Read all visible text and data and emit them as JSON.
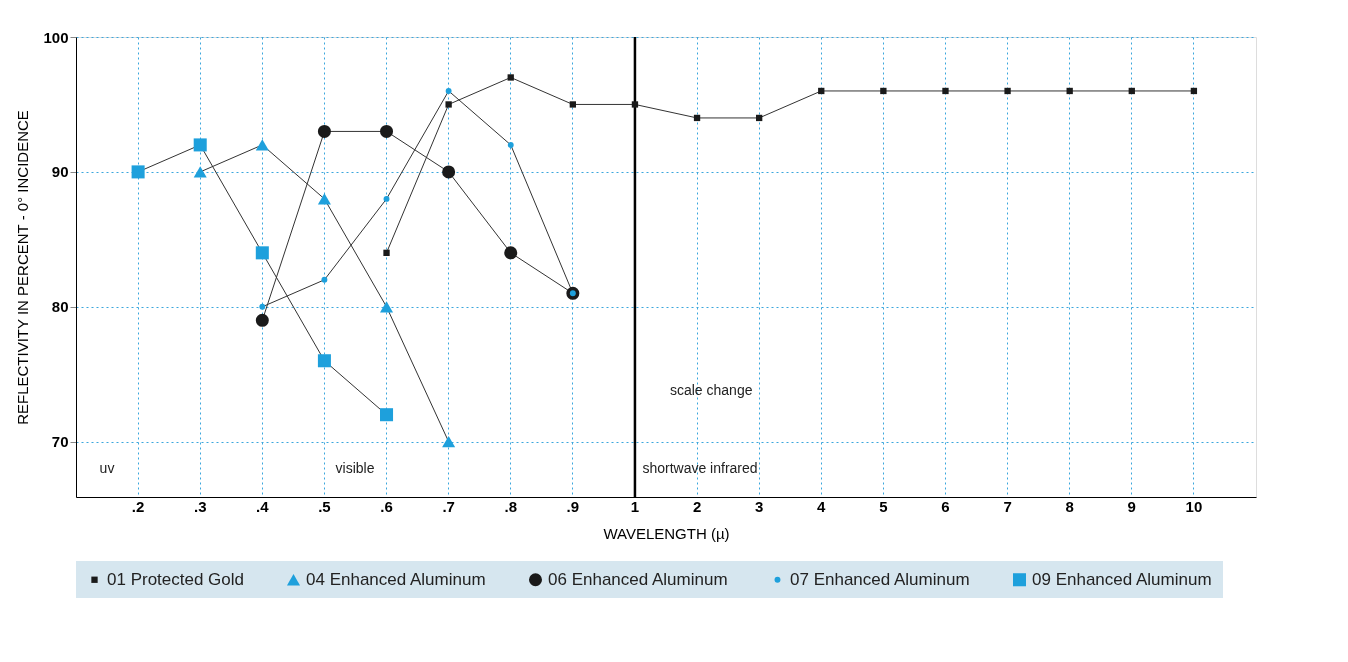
{
  "chart_data": {
    "type": "line",
    "xlabel": "WAVELENGTH (µ)",
    "ylabel": "REFLECTIVITY IN PERCENT - 0° INCIDENCE",
    "categories": [
      ".2",
      ".3",
      ".4",
      ".5",
      ".6",
      ".7",
      ".8",
      ".9",
      "1",
      "2",
      "3",
      "4",
      "5",
      "6",
      "7",
      "8",
      "9",
      "10"
    ],
    "series": [
      {
        "name": "01 Protected Gold",
        "color": "#1a1a1a",
        "marker": "square",
        "line_style": "solid",
        "values": [
          null,
          null,
          null,
          null,
          84,
          95,
          97,
          95,
          95,
          94,
          94,
          96,
          96,
          96,
          96,
          96,
          96,
          96
        ]
      },
      {
        "name": "04 Enhanced Aluminum",
        "color": "#1ea0dc",
        "marker": "triangle",
        "line_style": "solid",
        "values": [
          null,
          90,
          92,
          88,
          80,
          70,
          null,
          null,
          null,
          null,
          null,
          null,
          null,
          null,
          null,
          null,
          null,
          null
        ]
      },
      {
        "name": "06 Enhanced Aluminum",
        "color": "#1a1a1a",
        "marker": "circle",
        "line_style": "solid",
        "values": [
          null,
          null,
          79,
          93,
          93,
          90,
          84,
          81,
          null,
          null,
          null,
          null,
          null,
          null,
          null,
          null,
          null,
          null
        ]
      },
      {
        "name": "07 Enhanced Aluminum",
        "color": "#1ea0dc",
        "marker": "circle",
        "line_style": "solid",
        "values": [
          null,
          null,
          80,
          82,
          88,
          96,
          92,
          81,
          null,
          null,
          null,
          null,
          null,
          null,
          null,
          null,
          null,
          null
        ]
      },
      {
        "name": "09 Enhanced Aluminum",
        "color": "#1ea0dc",
        "marker": "square",
        "line_style": "solid",
        "values": [
          90,
          92,
          84,
          76,
          72,
          null,
          null,
          null,
          null,
          null,
          null,
          null,
          null,
          null,
          null,
          null,
          null,
          null
        ]
      }
    ],
    "ylim": [
      65.9,
      100
    ],
    "yticks": [
      70,
      80,
      90,
      100
    ],
    "grid": true,
    "legend": "bottom",
    "ref_lines": [
      {
        "axis": "x",
        "value": "1",
        "label": "scale change"
      }
    ],
    "annotations": [
      "uv",
      "visible",
      "shortwave infrared"
    ]
  }
}
